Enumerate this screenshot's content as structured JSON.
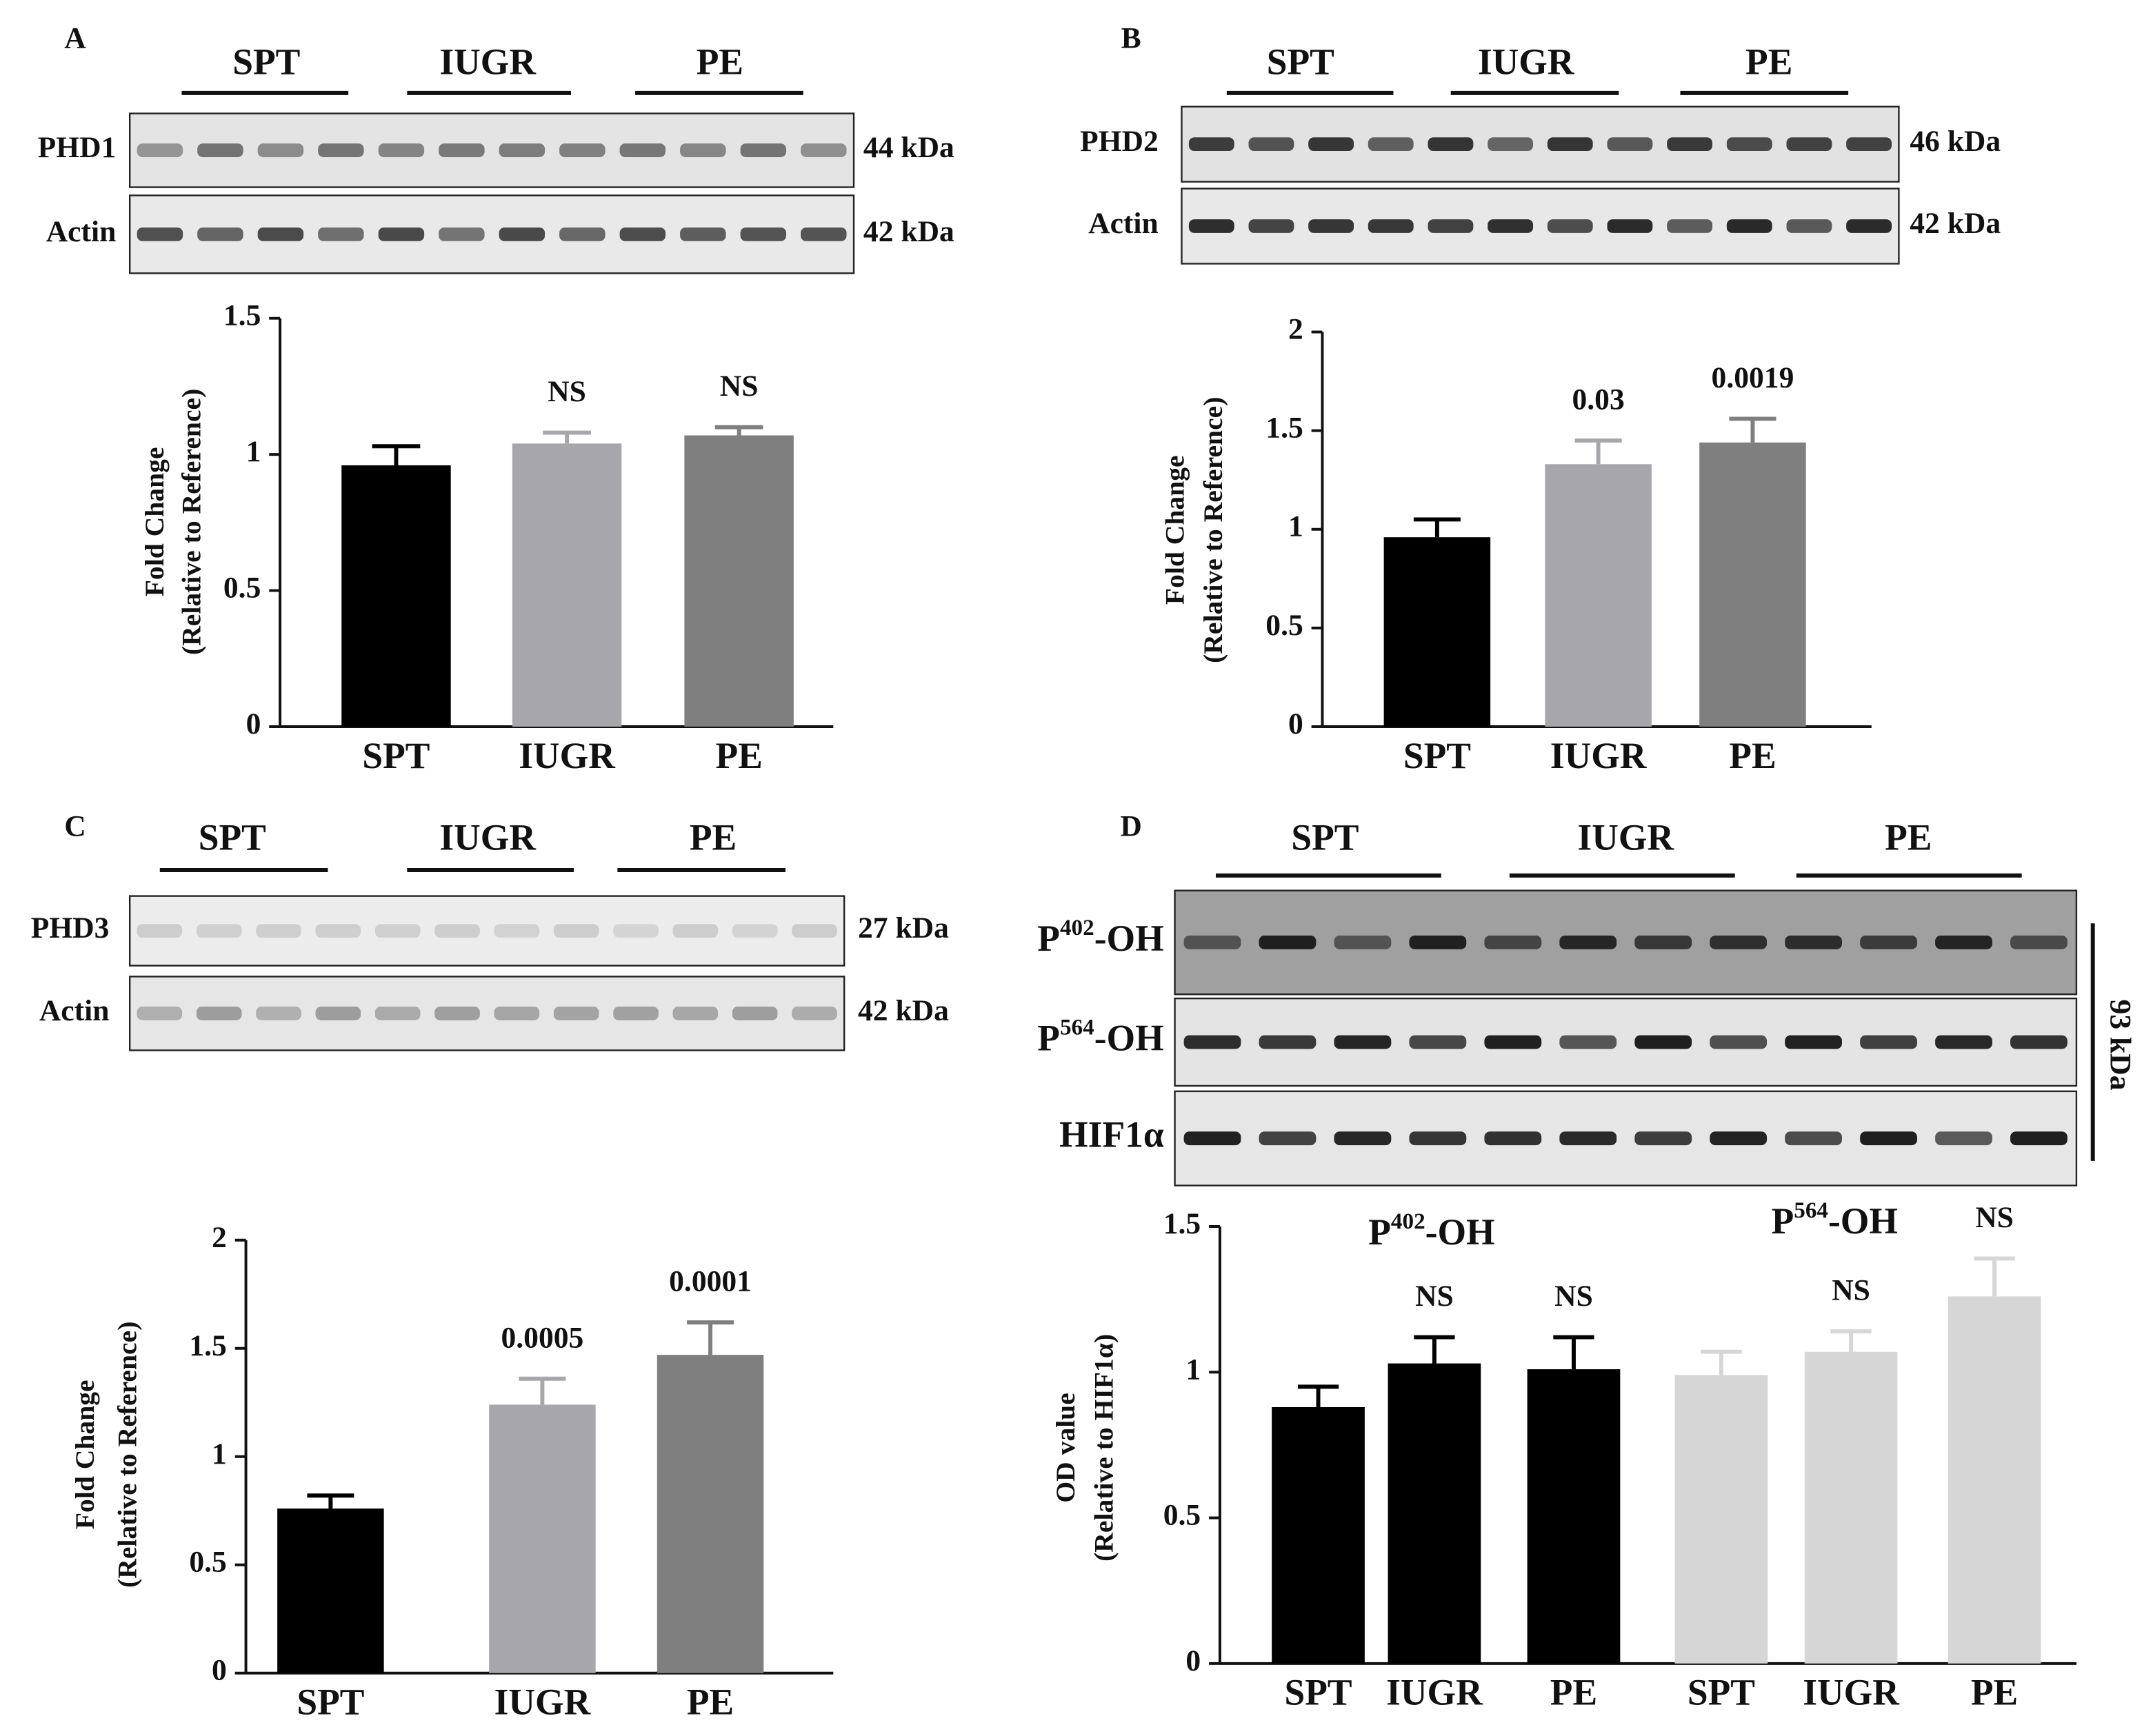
{
  "panels": [
    {
      "letter": "A",
      "groups": [
        "SPT",
        "IUGR",
        "PE"
      ],
      "rows": [
        {
          "label": "PHD1",
          "size": "44 kDa"
        },
        {
          "label": "Actin",
          "size": "42 kDa"
        }
      ]
    },
    {
      "letter": "B",
      "groups": [
        "SPT",
        "IUGR",
        "PE"
      ],
      "rows": [
        {
          "label": "PHD2",
          "size": "46 kDa"
        },
        {
          "label": "Actin",
          "size": "42 kDa"
        }
      ]
    },
    {
      "letter": "C",
      "groups": [
        "SPT",
        "IUGR",
        "PE"
      ],
      "rows": [
        {
          "label": "PHD3",
          "size": "27 kDa"
        },
        {
          "label": "Actin",
          "size": "42 kDa"
        }
      ]
    },
    {
      "letter": "D",
      "groups": [
        "SPT",
        "IUGR",
        "PE"
      ],
      "rows": [
        {
          "label": [
            "P",
            "402",
            "-OH"
          ]
        },
        {
          "label": [
            "P",
            "564",
            "-OH"
          ]
        },
        {
          "label": "HIF1α"
        }
      ],
      "size": "93 kDa"
    }
  ],
  "chart_data": [
    {
      "type": "bar",
      "categories": [
        "SPT",
        "IUGR",
        "PE"
      ],
      "values": [
        0.96,
        1.04,
        1.07
      ],
      "errors": [
        0.07,
        0.04,
        0.03
      ],
      "colors": [
        "#000000",
        "#a7a6aa",
        "#7f7f7f"
      ],
      "annotations": [
        null,
        "NS",
        "NS"
      ],
      "ylabel": [
        "Fold Change",
        "(Relative to Reference)"
      ],
      "ylim": [
        0,
        1.5
      ],
      "yticks": [
        0,
        0.5,
        1,
        1.5
      ]
    },
    {
      "type": "bar",
      "categories": [
        "SPT",
        "IUGR",
        "PE"
      ],
      "values": [
        0.96,
        1.33,
        1.44
      ],
      "errors": [
        0.09,
        0.12,
        0.12
      ],
      "colors": [
        "#000000",
        "#a7a6aa",
        "#7f7f7f"
      ],
      "annotations": [
        null,
        "0.03",
        "0.0019"
      ],
      "ylabel": [
        "Fold Change",
        "(Relative to Reference)"
      ],
      "ylim": [
        0,
        2
      ],
      "yticks": [
        0,
        0.5,
        1,
        1.5,
        2
      ]
    },
    {
      "type": "bar",
      "categories": [
        "SPT",
        "IUGR",
        "PE"
      ],
      "values": [
        0.76,
        1.24,
        1.47
      ],
      "errors": [
        0.06,
        0.12,
        0.15
      ],
      "colors": [
        "#000000",
        "#a7a6aa",
        "#7f7f7f"
      ],
      "annotations": [
        null,
        "0.0005",
        "0.0001"
      ],
      "ylabel": [
        "Fold Change",
        "(Relative to Reference)"
      ],
      "ylim": [
        0,
        2
      ],
      "yticks": [
        0,
        0.5,
        1,
        1.5,
        2
      ]
    },
    {
      "type": "bar",
      "categories": [
        "SPT",
        "IUGR",
        "PE",
        "SPT",
        "IUGR",
        "PE"
      ],
      "values": [
        0.88,
        1.03,
        1.01,
        0.99,
        1.07,
        1.26
      ],
      "errors": [
        0.07,
        0.09,
        0.11,
        0.08,
        0.07,
        0.13
      ],
      "colors": [
        "#000000",
        "#000000",
        "#000000",
        "#d6d6d6",
        "#d6d6d6",
        "#d6d6d6"
      ],
      "annotations": [
        null,
        "NS",
        "NS",
        null,
        "NS",
        "NS"
      ],
      "group_labels": [
        [
          "P",
          "402",
          "-OH"
        ],
        [
          "P",
          "564",
          "-OH"
        ]
      ],
      "ylabel": [
        "OD value",
        "(Relative to HIF1α)"
      ],
      "ylim": [
        0,
        1.5
      ],
      "yticks": [
        0,
        0.5,
        1,
        1.5
      ]
    }
  ]
}
